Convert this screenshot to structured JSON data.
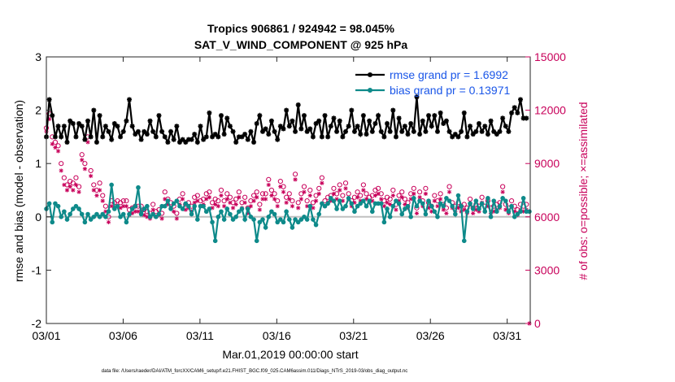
{
  "chart_data": {
    "type": "line",
    "title": "Tropics 906861 / 924942 = 98.045%",
    "subtitle": "SAT_V_WIND_COMPONENT @ 925 hPa",
    "xlabel": "Mar.01,2019 00:00:00 start",
    "ylabel": "rmse and bias (model - observation)",
    "ylabel_right": "# of obs: o=possible; ×=assimilated",
    "footer": "data file: /Users/raeder/DAI/ATM_forcXX/CAM6_setup/f.e21.FHIST_BGC.f09_025.CAM6assim.011/Diags_NTrS_2019-03/obs_diag_output.nc",
    "xlim": [
      0,
      31.5
    ],
    "ylim": [
      -2,
      3
    ],
    "ylim_right": [
      0,
      15000
    ],
    "x_ticks": [
      {
        "x": 0,
        "label": "03/01"
      },
      {
        "x": 5,
        "label": "03/06"
      },
      {
        "x": 10,
        "label": "03/11"
      },
      {
        "x": 15,
        "label": "03/16"
      },
      {
        "x": 20,
        "label": "03/21"
      },
      {
        "x": 25,
        "label": "03/26"
      },
      {
        "x": 30,
        "label": "03/31"
      }
    ],
    "y_ticks": [
      -2,
      -1,
      0,
      1,
      2,
      3
    ],
    "y_ticks_right": [
      0,
      3000,
      6000,
      9000,
      12000,
      15000
    ],
    "legend_position": "top-right",
    "series": [
      {
        "name": "rmse grand pr = 1.6992",
        "color": "#000000",
        "values": [
          1.5,
          2.2,
          1.9,
          1.5,
          1.7,
          1.5,
          1.7,
          1.4,
          1.8,
          1.75,
          1.5,
          1.75,
          1.7,
          1.45,
          1.8,
          1.5,
          2.0,
          1.4,
          1.9,
          1.5,
          1.7,
          1.6,
          1.45,
          1.75,
          1.7,
          1.5,
          1.6,
          1.8,
          2.2,
          1.7,
          1.55,
          1.6,
          1.45,
          1.6,
          1.55,
          1.8,
          1.6,
          1.5,
          1.9,
          1.6,
          1.5,
          1.4,
          1.6,
          1.45,
          1.7,
          1.4,
          1.45,
          1.4,
          1.45,
          1.45,
          1.55,
          1.4,
          1.7,
          1.45,
          1.5,
          1.95,
          1.5,
          1.55,
          1.5,
          1.9,
          1.55,
          1.85,
          1.7,
          1.6,
          1.4,
          1.5,
          1.5,
          1.55,
          1.45,
          1.6,
          1.4,
          1.75,
          1.9,
          1.6,
          1.65,
          1.55,
          1.8,
          1.6,
          1.45,
          1.7,
          1.65,
          2.0,
          1.7,
          1.8,
          1.6,
          2.1,
          1.65,
          1.9,
          1.6,
          1.65,
          1.5,
          1.75,
          1.8,
          1.5,
          1.9,
          1.5,
          1.7,
          1.85,
          1.6,
          1.8,
          1.5,
          1.6,
          1.7,
          2.0,
          1.6,
          1.7,
          1.55,
          1.9,
          1.55,
          1.8,
          1.6,
          1.75,
          1.9,
          1.6,
          1.5,
          1.75,
          1.6,
          2.0,
          1.5,
          1.85,
          1.6,
          1.7,
          1.55,
          1.75,
          1.6,
          2.25,
          1.55,
          1.8,
          1.6,
          1.9,
          1.7,
          1.9,
          1.6,
          1.95,
          1.75,
          1.8,
          1.6,
          1.5,
          1.55,
          1.5,
          1.6,
          1.95,
          1.5,
          1.7,
          1.55,
          1.6,
          1.75,
          1.6,
          1.7,
          1.55,
          1.8,
          1.6,
          1.55,
          1.6,
          1.85,
          1.7,
          1.6,
          1.95,
          2.05,
          1.95,
          2.2,
          1.85,
          1.85
        ]
      },
      {
        "name": "bias grand pr = 0.13971",
        "color": "#0e8a8a",
        "values": [
          0.15,
          0.25,
          -0.1,
          0.25,
          0.2,
          0.0,
          0.1,
          -0.05,
          0.05,
          0.15,
          0.2,
          0.15,
          0.05,
          -0.1,
          0.05,
          -0.05,
          0.0,
          0.05,
          0.0,
          0.05,
          0.0,
          0.1,
          0.6,
          0.15,
          0.2,
          0.0,
          0.05,
          -0.1,
          0.05,
          0.15,
          0.2,
          0.55,
          0.05,
          0.15,
          0.2,
          0.0,
          0.05,
          0.0,
          0.05,
          0.2,
          0.2,
          0.3,
          0.15,
          0.25,
          0.3,
          0.2,
          0.15,
          0.25,
          0.2,
          0.05,
          0.2,
          -0.05,
          0.2,
          0.2,
          0.1,
          0.15,
          -0.1,
          -0.45,
          0.0,
          0.1,
          -0.05,
          0.15,
          0.05,
          -0.05,
          0.0,
          0.1,
          0.15,
          -0.05,
          0.15,
          0.0,
          -0.05,
          -0.45,
          -0.1,
          -0.05,
          -0.2,
          0.0,
          0.1,
          0.05,
          -0.1,
          -0.05,
          -0.1,
          0.1,
          -0.05,
          -0.2,
          -0.05,
          -0.1,
          -0.05,
          0.0,
          -0.05,
          0.2,
          -0.05,
          -0.15,
          0.05,
          0.25,
          0.2,
          0.25,
          0.35,
          0.3,
          0.15,
          0.3,
          0.15,
          0.2,
          0.35,
          0.25,
          0.1,
          0.2,
          0.25,
          0.3,
          0.2,
          0.3,
          0.1,
          0.25,
          0.25,
          0.25,
          -0.1,
          0.15,
          0.0,
          0.2,
          0.3,
          0.25,
          0.05,
          0.15,
          0.2,
          0.0,
          0.35,
          0.2,
          0.3,
          0.25,
          0.05,
          0.3,
          0.2,
          0.1,
          0.0,
          0.25,
          0.2,
          0.35,
          0.3,
          0.2,
          0.05,
          0.4,
          0.2,
          -0.45,
          0.1,
          0.25,
          0.15,
          0.3,
          0.15,
          0.25,
          0.1,
          0.35,
          0.0,
          0.3,
          0.1,
          0.2,
          0.35,
          0.3,
          0.1,
          0.2,
          0.0,
          0.05,
          0.1,
          0.35,
          0.1,
          0.1
        ]
      },
      {
        "name": "possible",
        "color": "#c8005a",
        "marker": "o",
        "values": [
          11000,
          11800,
          10500,
          10200,
          10000,
          9000,
          8200,
          7800,
          8000,
          7900,
          8200,
          7700,
          9500,
          9000,
          10500,
          8600,
          7800,
          7500,
          7900,
          7200,
          6600,
          6000,
          6900,
          6800,
          6900,
          6800,
          6900,
          6900,
          6400,
          6500,
          6600,
          6600,
          6600,
          6400,
          6300,
          6200,
          6700,
          6300,
          6400,
          6200,
          7400,
          7000,
          6800,
          6600,
          6200,
          7000,
          7300,
          6700,
          6800,
          6600,
          7100,
          7200,
          6900,
          7000,
          7300,
          7400,
          6800,
          7000,
          6900,
          7500,
          6900,
          7300,
          7100,
          6800,
          7000,
          7400,
          6800,
          7100,
          6500,
          6900,
          7200,
          7400,
          6700,
          7300,
          7300,
          8100,
          7500,
          7300,
          6900,
          8000,
          7700,
          7100,
          7300,
          6900,
          8400,
          6800,
          7300,
          7700,
          6900,
          7500,
          6800,
          7200,
          7600,
          8200,
          6900,
          7100,
          7200,
          7600,
          7300,
          7800,
          7200,
          7900,
          7300,
          6900,
          7100,
          7400,
          7200,
          7800,
          7300,
          7100,
          7200,
          7500,
          7600,
          7300,
          6900,
          7100,
          7000,
          7500,
          6700,
          7200,
          7400,
          7000,
          6800,
          7300,
          7600,
          6500,
          7400,
          6900,
          7600,
          6800,
          6600,
          7200,
          6900,
          7300,
          6700,
          6500,
          7700,
          6800,
          6600,
          6800,
          6600,
          6700,
          6500,
          7000,
          6500,
          6700,
          6600,
          7100,
          6600,
          6900,
          6500,
          6600,
          6700,
          6800,
          7700,
          6700,
          6500,
          6900,
          6600,
          6400,
          6700,
          6600,
          6700,
          0
        ]
      },
      {
        "name": "assimilated",
        "color": "#c8005a",
        "marker": "x",
        "values": [
          10800,
          11500,
          10100,
          9900,
          9700,
          8600,
          7800,
          7500,
          7700,
          7500,
          7800,
          7400,
          9200,
          8700,
          10200,
          8300,
          7500,
          7200,
          7500,
          6900,
          6300,
          5700,
          6600,
          6500,
          6600,
          6500,
          6600,
          6600,
          6100,
          6200,
          6300,
          6300,
          6300,
          6100,
          6000,
          5900,
          6400,
          6000,
          6100,
          5900,
          7000,
          6700,
          6500,
          6300,
          5900,
          6700,
          7000,
          6400,
          6500,
          6300,
          6800,
          6900,
          6600,
          6700,
          7000,
          7100,
          6500,
          6700,
          6600,
          7200,
          6600,
          7000,
          6800,
          6500,
          6700,
          7100,
          6500,
          6800,
          6200,
          6600,
          6900,
          7100,
          6400,
          7000,
          7000,
          7800,
          7200,
          7000,
          6600,
          7700,
          7400,
          6800,
          7000,
          6600,
          8100,
          6500,
          7000,
          7400,
          6600,
          7200,
          6500,
          6900,
          7300,
          7900,
          6600,
          6800,
          6900,
          7300,
          7000,
          7500,
          6900,
          7600,
          7000,
          6600,
          6800,
          7100,
          6900,
          7500,
          7000,
          6800,
          6900,
          7200,
          7300,
          7000,
          6600,
          6800,
          6700,
          7200,
          6400,
          6900,
          7100,
          6700,
          6500,
          7000,
          7300,
          6200,
          7100,
          6600,
          7300,
          6500,
          6300,
          6900,
          6600,
          7000,
          6400,
          6200,
          7400,
          6500,
          6300,
          6500,
          6300,
          6400,
          6200,
          6700,
          6200,
          6400,
          6300,
          6800,
          6300,
          6600,
          6200,
          6300,
          6400,
          6500,
          7400,
          6400,
          6200,
          6600,
          6300,
          6100,
          6400,
          6300,
          6400,
          0
        ]
      }
    ]
  }
}
